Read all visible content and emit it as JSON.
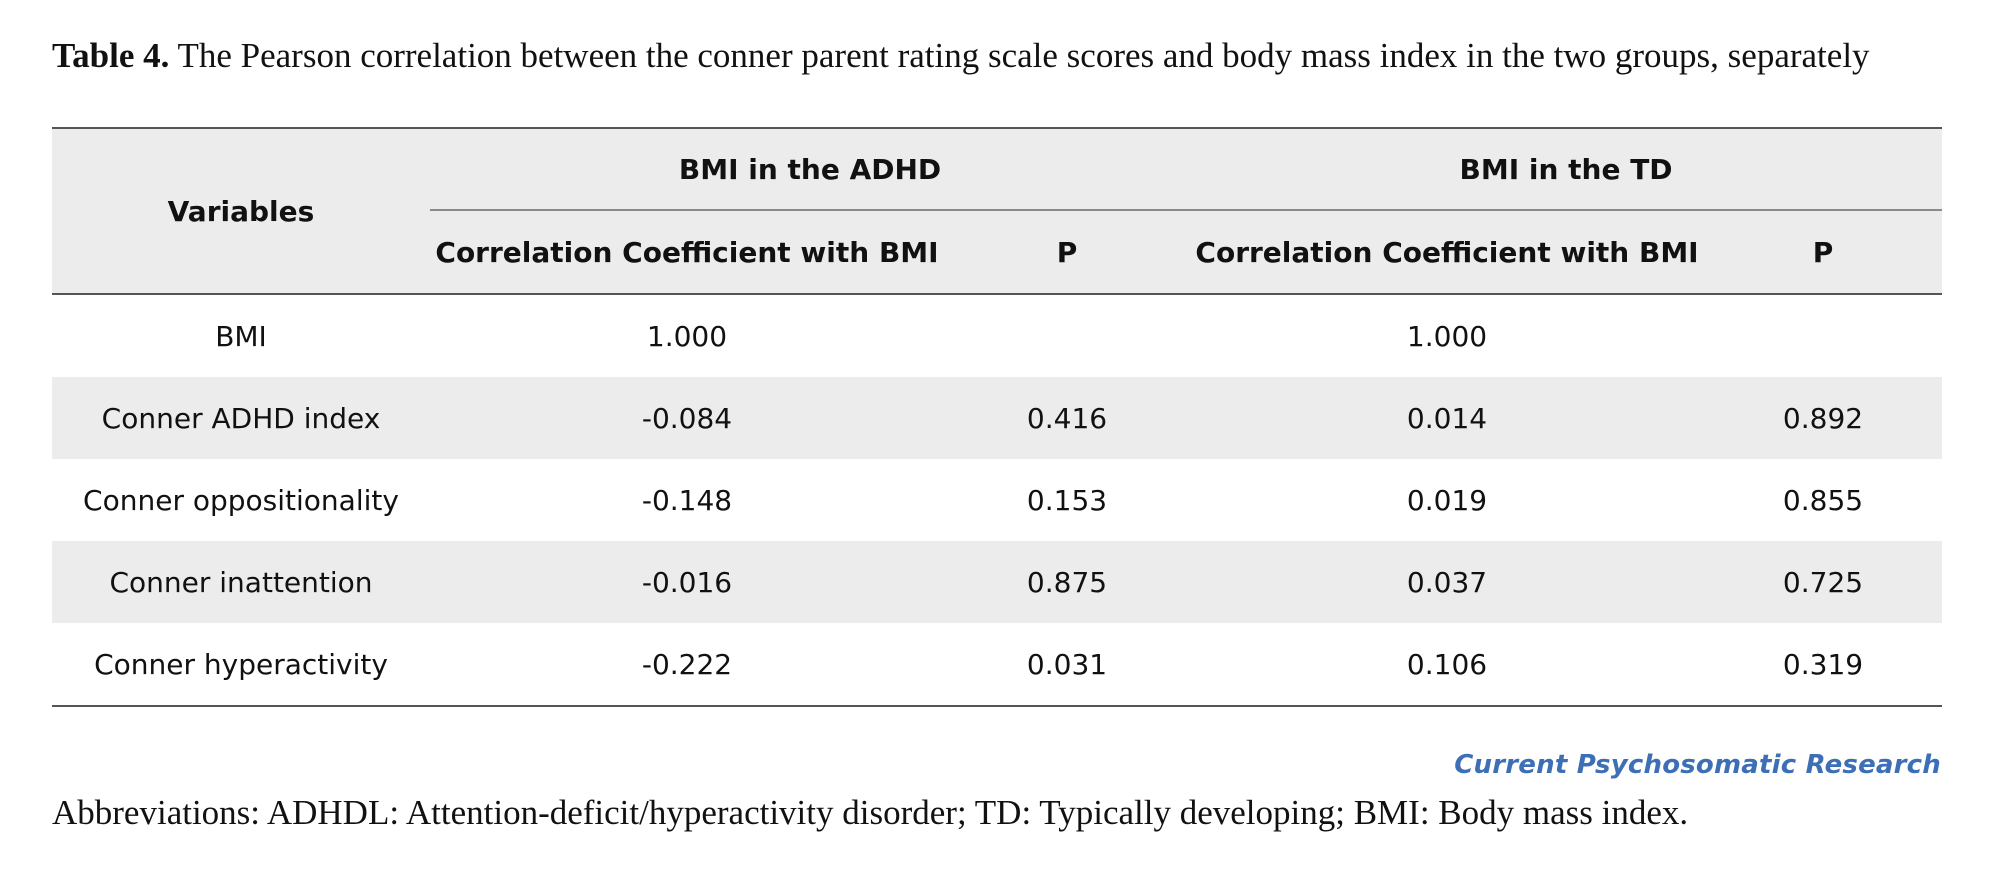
{
  "caption": {
    "label": "Table 4.",
    "text": " The Pearson correlation between the conner parent rating scale scores and body mass index in the two groups, separately"
  },
  "table": {
    "variables_header": "Variables",
    "groups": [
      {
        "title": "BMI in the ADHD",
        "coef_header": "Correlation Coefficient with BMI",
        "p_header": "P"
      },
      {
        "title": "BMI in the TD",
        "coef_header": "Correlation Coefficient with BMI",
        "p_header": "P"
      }
    ],
    "rows": [
      {
        "variable": "BMI",
        "adhd_r": "1.000",
        "adhd_p": "",
        "td_r": "1.000",
        "td_p": ""
      },
      {
        "variable": "Conner ADHD index",
        "adhd_r": "-0.084",
        "adhd_p": "0.416",
        "td_r": "0.014",
        "td_p": "0.892"
      },
      {
        "variable": "Conner oppositionality",
        "adhd_r": "-0.148",
        "adhd_p": "0.153",
        "td_r": "0.019",
        "td_p": "0.855"
      },
      {
        "variable": "Conner inattention",
        "adhd_r": "-0.016",
        "adhd_p": "0.875",
        "td_r": "0.037",
        "td_p": "0.725"
      },
      {
        "variable": "Conner hyperactivity",
        "adhd_r": "-0.222",
        "adhd_p": "0.031",
        "td_r": "0.106",
        "td_p": "0.319"
      }
    ]
  },
  "brand": {
    "text": "Current Psychosomatic Research",
    "color": "#3d6fb6"
  },
  "footnote": "Abbreviations: ADHDL: Attention-deficit/hyperactivity disorder; TD: Typically developing; BMI: Body mass index.",
  "colors": {
    "header_shade": "#ececec",
    "rule": "#555555"
  }
}
